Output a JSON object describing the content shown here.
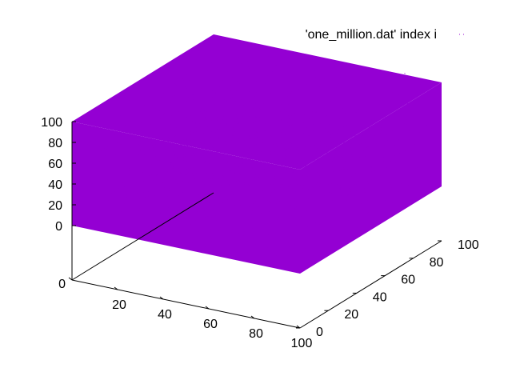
{
  "chart_data": {
    "type": "scatter",
    "plot_style": "3d-points",
    "legend": {
      "label": "'one_million.dat' index i",
      "position": "top-right"
    },
    "series": [
      {
        "name": "'one_million.dat' index i",
        "color": "#9400d3",
        "distribution": "uniform-random",
        "point_count": 1000000
      }
    ],
    "xlim": [
      0,
      100
    ],
    "ylim": [
      0,
      100
    ],
    "zlim": [
      0,
      100
    ],
    "x_ticks": [
      0,
      20,
      40,
      60,
      80,
      100
    ],
    "y_ticks": [
      0,
      20,
      40,
      60,
      80,
      100
    ],
    "z_ticks": [
      0,
      20,
      40,
      60,
      80,
      100
    ],
    "grid": false
  }
}
